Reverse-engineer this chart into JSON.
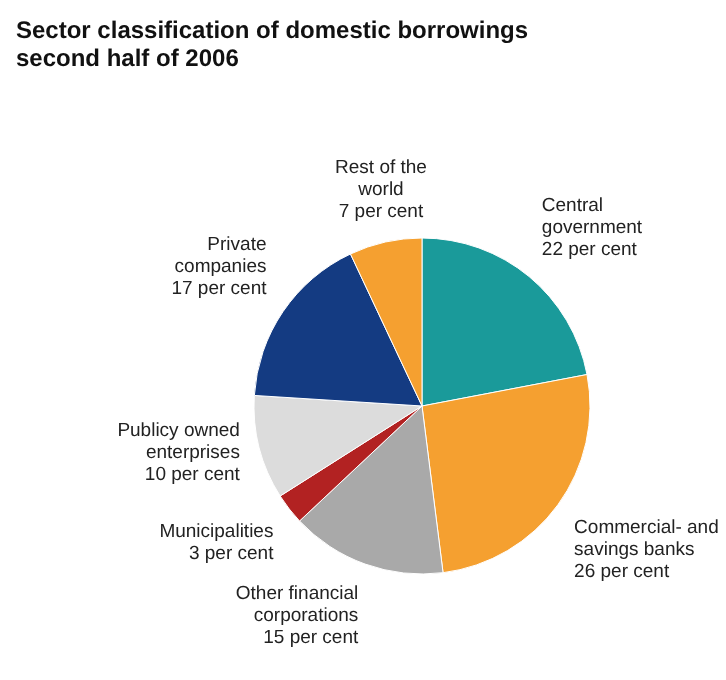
{
  "chart_data": {
    "type": "pie",
    "title": "Sector classification of domestic borrowings second half of 2006",
    "categories": [
      "Central government",
      "Commercial- and savings banks",
      "Other financial corporations",
      "Municipalities",
      "Publicy owned enterprises",
      "Private companies",
      "Rest of the world"
    ],
    "values": [
      22,
      26,
      15,
      3,
      10,
      17,
      7
    ],
    "value_labels": [
      "22 per cent",
      "26 per cent",
      "15 per cent",
      "3 per cent",
      "10 per cent",
      "17 per cent",
      "7 per cent"
    ],
    "colors": [
      "#1a9a9a",
      "#f5a030",
      "#a9a9a9",
      "#b22222",
      "#dcdcdc",
      "#143b82",
      "#f5a030"
    ],
    "legend": false
  }
}
